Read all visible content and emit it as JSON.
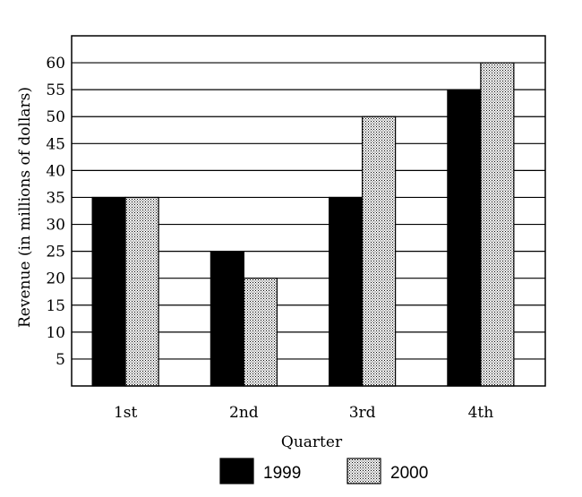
{
  "chart_data": {
    "type": "bar",
    "title": "",
    "xlabel": "Quarter",
    "ylabel": "Revenue (in millions of dollars)",
    "categories": [
      "1st",
      "2nd",
      "3rd",
      "4th"
    ],
    "ylim": [
      0,
      65
    ],
    "yticks": [
      5,
      10,
      15,
      20,
      25,
      30,
      35,
      40,
      45,
      50,
      55,
      60
    ],
    "grid": true,
    "legend_position": "bottom",
    "series": [
      {
        "name": "1999",
        "values": [
          35,
          25,
          35,
          55
        ],
        "fill": "solid-black",
        "color": "#000000"
      },
      {
        "name": "2000",
        "values": [
          35,
          20,
          50,
          60
        ],
        "fill": "dotted-stipple",
        "color": "#d8d8d8"
      }
    ]
  }
}
